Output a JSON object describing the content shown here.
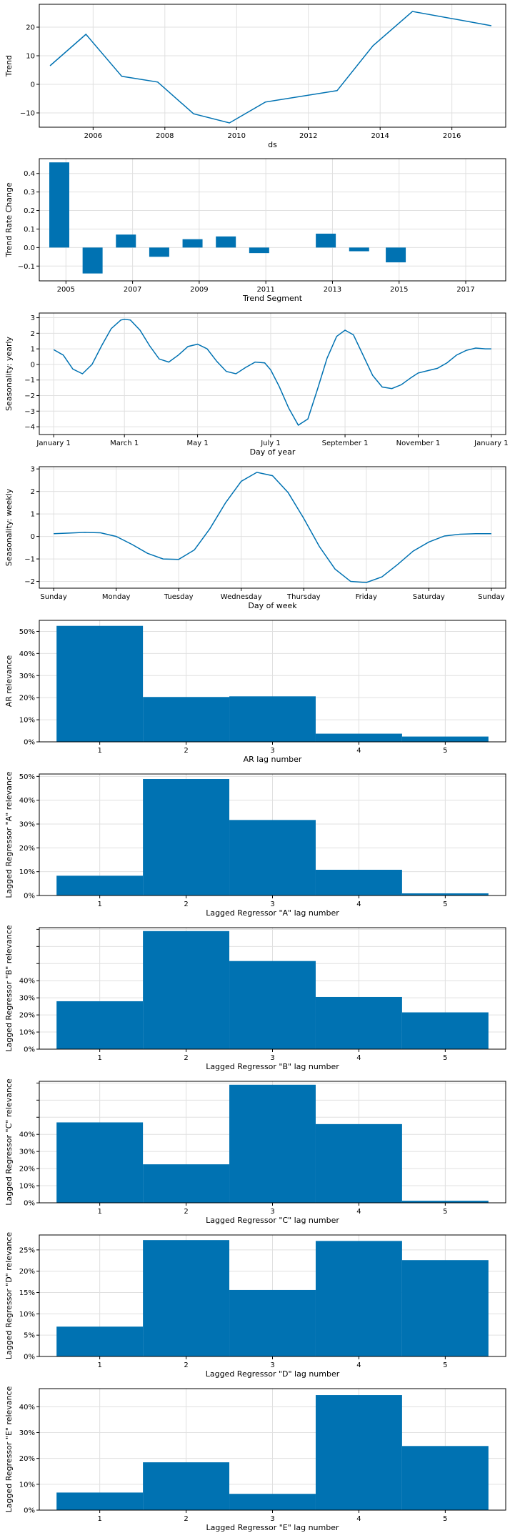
{
  "colors": {
    "series": "#0072B2",
    "grid": "#e0e0e0",
    "axis": "#000000"
  },
  "chart_data": [
    {
      "id": "trend",
      "type": "line",
      "title": "",
      "xlabel": "ds",
      "ylabel": "Trend",
      "x_type": "year",
      "xlim": [
        2004.5,
        2017.5
      ],
      "ylim": [
        -15,
        28
      ],
      "xticks": [
        2006,
        2008,
        2010,
        2012,
        2014,
        2016
      ],
      "xticklabels": [
        "2006",
        "2008",
        "2010",
        "2012",
        "2014",
        "2016"
      ],
      "yticks": [
        -10,
        0,
        10,
        20
      ],
      "yticklabels": [
        "−10",
        "0",
        "10",
        "20"
      ],
      "grid": true,
      "series": [
        {
          "x": [
            2004.8,
            2005.8,
            2006.8,
            2007.8,
            2008.8,
            2009.8,
            2010.8,
            2012.8,
            2013.8,
            2014.9,
            2017.1
          ],
          "y": [
            6.5,
            17.5,
            2.8,
            0.8,
            -10.3,
            -13.5,
            -6.2,
            -2.2,
            13.5,
            25.5,
            20.5
          ]
        }
      ]
    },
    {
      "id": "trend_rate_change",
      "type": "bar",
      "title": "",
      "xlabel": "Trend Segment",
      "ylabel": "Trend Rate Change",
      "xlim": [
        2004.2,
        2018.2
      ],
      "ylim": [
        -0.18,
        0.48
      ],
      "xticks": [
        2005,
        2007,
        2009,
        2011,
        2013,
        2015,
        2017
      ],
      "xticklabels": [
        "2005",
        "2007",
        "2009",
        "2011",
        "2013",
        "2015",
        "2017"
      ],
      "yticks": [
        -0.1,
        0.0,
        0.1,
        0.2,
        0.3,
        0.4
      ],
      "yticklabels": [
        "−0.1",
        "0.0",
        "0.1",
        "0.2",
        "0.3",
        "0.4"
      ],
      "grid": true,
      "bar_width": 0.6,
      "series": [
        {
          "x": [
            2004.8,
            2005.8,
            2006.8,
            2007.8,
            2008.8,
            2009.8,
            2010.8,
            2012.8,
            2013.8,
            2014.9
          ],
          "values": [
            0.46,
            -0.14,
            0.07,
            -0.05,
            0.045,
            0.06,
            -0.03,
            0.075,
            -0.02,
            -0.08
          ]
        }
      ]
    },
    {
      "id": "seasonality_yearly",
      "type": "line",
      "title": "",
      "xlabel": "Day of year",
      "ylabel": "Seasonality: yearly",
      "xlim": [
        -12,
        377
      ],
      "ylim": [
        -4.5,
        3.3
      ],
      "xticks": [
        0,
        59,
        120,
        181,
        243,
        304,
        365
      ],
      "xticklabels": [
        "January 1",
        "March 1",
        "May 1",
        "July 1",
        "September 1",
        "November 1",
        "January 1"
      ],
      "yticks": [
        -4,
        -3,
        -2,
        -1,
        0,
        1,
        2,
        3
      ],
      "yticklabels": [
        "−4",
        "−3",
        "−2",
        "−1",
        "0",
        "1",
        "2",
        "3"
      ],
      "grid": true,
      "series": [
        {
          "x": [
            0,
            8,
            16,
            24,
            32,
            40,
            48,
            56,
            59,
            64,
            72,
            80,
            88,
            96,
            104,
            112,
            120,
            128,
            136,
            144,
            152,
            160,
            168,
            176,
            181,
            188,
            196,
            204,
            212,
            220,
            228,
            236,
            243,
            250,
            258,
            266,
            274,
            282,
            290,
            298,
            304,
            312,
            320,
            328,
            336,
            344,
            352,
            360,
            365
          ],
          "y": [
            0.95,
            0.6,
            -0.3,
            -0.6,
            0.0,
            1.2,
            2.3,
            2.85,
            2.9,
            2.85,
            2.2,
            1.2,
            0.35,
            0.15,
            0.6,
            1.15,
            1.3,
            1.0,
            0.2,
            -0.45,
            -0.6,
            -0.2,
            0.15,
            0.1,
            -0.35,
            -1.4,
            -2.8,
            -3.9,
            -3.5,
            -1.6,
            0.4,
            1.8,
            2.2,
            1.9,
            0.6,
            -0.7,
            -1.45,
            -1.55,
            -1.3,
            -0.85,
            -0.55,
            -0.4,
            -0.25,
            0.1,
            0.6,
            0.9,
            1.05,
            1.0,
            1.0
          ]
        }
      ]
    },
    {
      "id": "seasonality_weekly",
      "type": "line",
      "title": "",
      "xlabel": "Day of week",
      "ylabel": "Seasonality: weekly",
      "xlim": [
        -0.23,
        7.23
      ],
      "ylim": [
        -2.3,
        3.1
      ],
      "xticks": [
        0,
        1,
        2,
        3,
        4,
        5,
        6,
        7
      ],
      "xticklabels": [
        "Sunday",
        "Monday",
        "Tuesday",
        "Wednesday",
        "Thursday",
        "Friday",
        "Saturday",
        "Sunday"
      ],
      "yticks": [
        -2,
        -1,
        0,
        1,
        2,
        3
      ],
      "yticklabels": [
        "−2",
        "−1",
        "0",
        "1",
        "2",
        "3"
      ],
      "grid": true,
      "series": [
        {
          "x": [
            0,
            0.25,
            0.5,
            0.75,
            1.0,
            1.25,
            1.5,
            1.75,
            2.0,
            2.25,
            2.5,
            2.75,
            3.0,
            3.25,
            3.5,
            3.75,
            4.0,
            4.25,
            4.5,
            4.75,
            5.0,
            5.25,
            5.5,
            5.75,
            6.0,
            6.25,
            6.5,
            6.75,
            7.0
          ],
          "y": [
            0.12,
            0.15,
            0.18,
            0.16,
            0.0,
            -0.35,
            -0.75,
            -1.0,
            -1.02,
            -0.6,
            0.35,
            1.5,
            2.45,
            2.85,
            2.7,
            1.95,
            0.8,
            -0.45,
            -1.45,
            -2.0,
            -2.05,
            -1.8,
            -1.25,
            -0.65,
            -0.25,
            0.02,
            0.1,
            0.12,
            0.12
          ]
        }
      ]
    },
    {
      "id": "ar_relevance",
      "type": "bar",
      "title": "",
      "xlabel": "AR lag number",
      "ylabel": "AR relevance",
      "xlim": [
        0.3,
        5.7
      ],
      "ylim": [
        0,
        55
      ],
      "categories": [
        "1",
        "2",
        "3",
        "4",
        "5"
      ],
      "xticks": [
        1,
        2,
        3,
        4,
        5
      ],
      "yticks": [
        0,
        10,
        20,
        30,
        40,
        50
      ],
      "yticklabels": [
        "0%",
        "10%",
        "20%",
        "30%",
        "40%",
        "50%"
      ],
      "grid": true,
      "bar_width": 1,
      "series": [
        {
          "values": [
            52.5,
            20.3,
            20.6,
            3.7,
            2.4
          ]
        }
      ]
    },
    {
      "id": "lagged_A",
      "type": "bar",
      "title": "",
      "xlabel": "Lagged Regressor \"A\" lag number",
      "ylabel": "Lagged Regressor \"A\" relevance",
      "xlim": [
        0.3,
        5.7
      ],
      "ylim": [
        0,
        51
      ],
      "categories": [
        "1",
        "2",
        "3",
        "4",
        "5"
      ],
      "xticks": [
        1,
        2,
        3,
        4,
        5
      ],
      "yticks": [
        0,
        10,
        20,
        30,
        40,
        50
      ],
      "yticklabels": [
        "0%",
        "10%",
        "20%",
        "30%",
        "40%",
        "50%"
      ],
      "grid": true,
      "bar_width": 1,
      "series": [
        {
          "values": [
            8.3,
            48.9,
            31.7,
            10.8,
            0.9
          ]
        }
      ]
    },
    {
      "id": "lagged_B",
      "type": "bar",
      "title": "",
      "xlabel": "Lagged Regressor \"B\" lag number",
      "ylabel": "Lagged Regressor \"B\" relevance",
      "xlim": [
        0.3,
        5.7
      ],
      "ylim": [
        0,
        71
      ],
      "categories": [
        "1",
        "2",
        "3",
        "4",
        "5"
      ],
      "xticks": [
        1,
        2,
        3,
        4,
        5
      ],
      "yticks": [
        0,
        10,
        20,
        30,
        40,
        50,
        60,
        70
      ],
      "yticklabels": [
        "0%",
        "10%",
        "20%",
        "30%",
        "40%",
        "",
        "",
        ""
      ],
      "grid": true,
      "bar_width": 1,
      "series": [
        {
          "values": [
            28,
            69,
            51.5,
            30.5,
            21.5
          ]
        }
      ]
    },
    {
      "id": "lagged_C",
      "type": "bar",
      "title": "",
      "xlabel": "Lagged Regressor \"C\" lag number",
      "ylabel": "Lagged Regressor \"C\" relevance",
      "xlim": [
        0.3,
        5.7
      ],
      "ylim": [
        0,
        71
      ],
      "categories": [
        "1",
        "2",
        "3",
        "4",
        "5"
      ],
      "xticks": [
        1,
        2,
        3,
        4,
        5
      ],
      "yticks": [
        0,
        10,
        20,
        30,
        40,
        50,
        60,
        70
      ],
      "yticklabels": [
        "0%",
        "10%",
        "20%",
        "30%",
        "40%",
        "",
        "",
        ""
      ],
      "grid": true,
      "bar_width": 1,
      "series": [
        {
          "values": [
            47,
            22.5,
            69,
            46,
            1.2
          ]
        }
      ]
    },
    {
      "id": "lagged_D",
      "type": "bar",
      "title": "",
      "xlabel": "Lagged Regressor \"D\" lag number",
      "ylabel": "Lagged Regressor \"D\" relevance",
      "xlim": [
        0.3,
        5.7
      ],
      "ylim": [
        0,
        28.5
      ],
      "categories": [
        "1",
        "2",
        "3",
        "4",
        "5"
      ],
      "xticks": [
        1,
        2,
        3,
        4,
        5
      ],
      "yticks": [
        0,
        5,
        10,
        15,
        20,
        25
      ],
      "yticklabels": [
        "0%",
        "5%",
        "10%",
        "15%",
        "20%",
        "25%"
      ],
      "grid": true,
      "bar_width": 1,
      "series": [
        {
          "values": [
            7.0,
            27.3,
            15.6,
            27.1,
            22.6
          ]
        }
      ]
    },
    {
      "id": "lagged_E",
      "type": "bar",
      "title": "",
      "xlabel": "Lagged Regressor \"E\" lag number",
      "ylabel": "Lagged Regressor \"E\" relevance",
      "xlim": [
        0.3,
        5.7
      ],
      "ylim": [
        0,
        47
      ],
      "categories": [
        "1",
        "2",
        "3",
        "4",
        "5"
      ],
      "xticks": [
        1,
        2,
        3,
        4,
        5
      ],
      "yticks": [
        0,
        10,
        20,
        30,
        40
      ],
      "yticklabels": [
        "0%",
        "10%",
        "20%",
        "30%",
        "40%"
      ],
      "grid": true,
      "bar_width": 1,
      "series": [
        {
          "values": [
            6.8,
            18.5,
            6.3,
            44.5,
            24.8
          ]
        }
      ]
    }
  ]
}
